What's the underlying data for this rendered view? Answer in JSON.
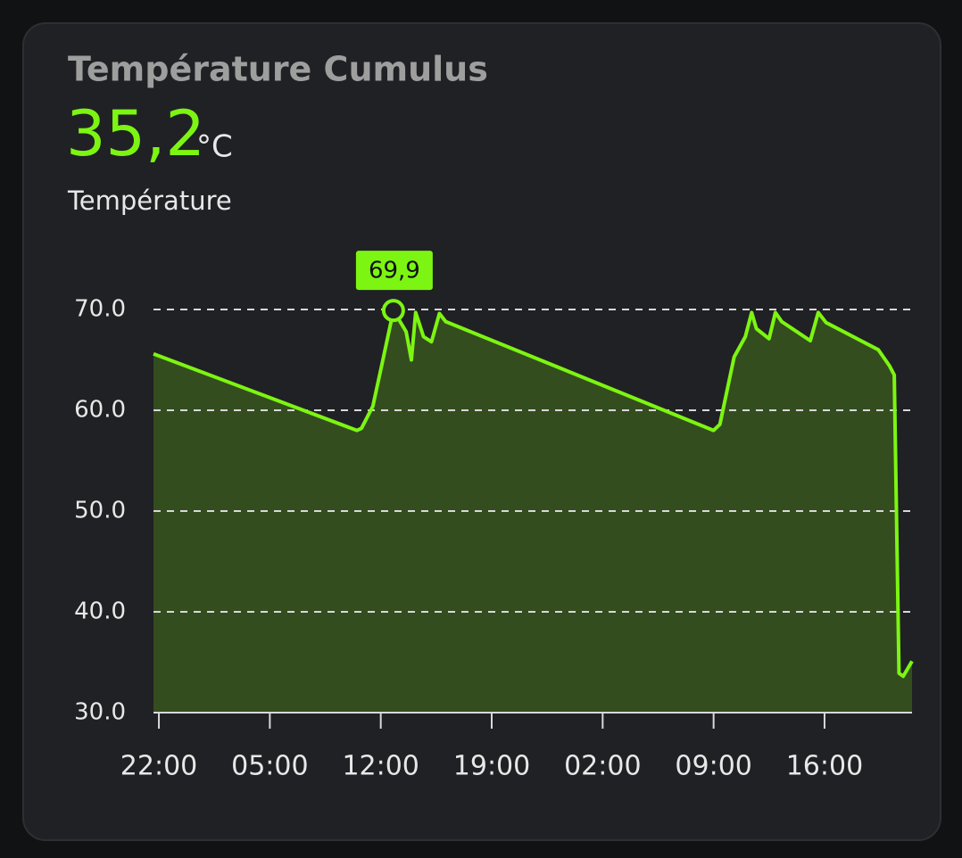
{
  "card": {
    "title": "Température Cumulus",
    "state": "35,2",
    "unit": "°C",
    "name": "Température"
  },
  "chart_data": {
    "type": "area",
    "color": "#7cf512",
    "fill": "#344d1f",
    "grid": true,
    "x": [
      -0.34,
      12.5,
      12.78,
      13.5,
      14.08,
      14.8,
      15.6,
      15.93,
      16.2,
      16.7,
      17.2,
      17.7,
      18.1,
      35.0,
      35.4,
      36.3,
      37.0,
      37.4,
      37.7,
      38.5,
      38.9,
      39.3,
      41.1,
      41.6,
      42.1,
      45.4,
      46.1,
      46.4,
      46.7,
      46.96,
      47.52
    ],
    "values": [
      65.6,
      58.0,
      58.2,
      60.4,
      64.6,
      69.9,
      67.8,
      65.0,
      69.7,
      67.3,
      66.8,
      69.6,
      68.8,
      58.0,
      58.6,
      65.3,
      67.3,
      69.7,
      68.1,
      67.1,
      69.7,
      68.8,
      66.9,
      69.7,
      68.7,
      66.0,
      64.4,
      63.5,
      33.9,
      33.6,
      35.1
    ],
    "xlim": [
      -0.34,
      47.52
    ],
    "xticks": [
      {
        "value": 0,
        "label": "22:00"
      },
      {
        "value": 7,
        "label": "05:00"
      },
      {
        "value": 14,
        "label": "12:00"
      },
      {
        "value": 21,
        "label": "19:00"
      },
      {
        "value": 28,
        "label": "02:00"
      },
      {
        "value": 35,
        "label": "09:00"
      },
      {
        "value": 42,
        "label": "16:00"
      }
    ],
    "ylim": [
      30,
      70
    ],
    "yticks": [
      {
        "value": 30,
        "label": "30.0"
      },
      {
        "value": 40,
        "label": "40.0"
      },
      {
        "value": 50,
        "label": "50.0"
      },
      {
        "value": 60,
        "label": "60.0"
      },
      {
        "value": 70,
        "label": "70.0"
      }
    ],
    "annotations": [
      {
        "x": 14.8,
        "y": 69.9,
        "label": "69,9"
      }
    ]
  }
}
